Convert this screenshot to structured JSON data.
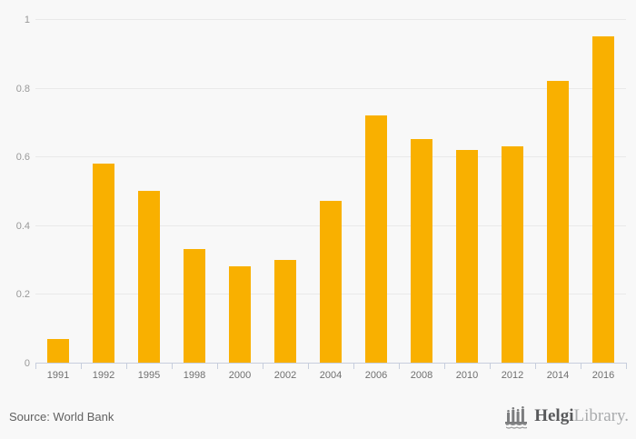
{
  "chart_data": {
    "type": "bar",
    "categories": [
      "1991",
      "1992",
      "1995",
      "1998",
      "2000",
      "2002",
      "2004",
      "2006",
      "2008",
      "2010",
      "2012",
      "2014",
      "2016"
    ],
    "values": [
      0.07,
      0.58,
      0.5,
      0.33,
      0.28,
      0.3,
      0.47,
      0.72,
      0.65,
      0.62,
      0.63,
      0.82,
      0.95
    ],
    "title": "",
    "xlabel": "",
    "ylabel": "",
    "ylim": [
      0,
      1
    ],
    "yticks": [
      0,
      0.2,
      0.4,
      0.6,
      0.8,
      1
    ],
    "ytick_labels": [
      "0",
      "0.2",
      "0.4",
      "0.6",
      "0.8",
      "1"
    ],
    "grid": true,
    "legend": false,
    "bar_color": "#f9b000"
  },
  "colors": {
    "background": "#f8f8f8",
    "bar": "#f9b000",
    "gridline": "#e9e9e9",
    "axis_line": "#c7cedd",
    "ytick_text": "#999999",
    "xtick_text": "#6f6f6f",
    "source_text": "#616161",
    "logo_dark": "#58595b",
    "logo_light": "#a9abad"
  },
  "footer": {
    "source_label": "Source: World Bank",
    "logo": {
      "name_bold": "Helgi",
      "name_light": "Library."
    }
  }
}
